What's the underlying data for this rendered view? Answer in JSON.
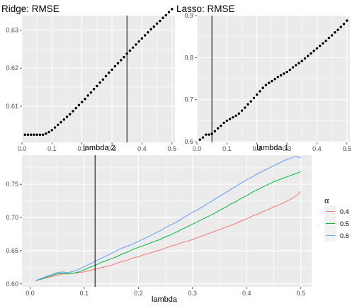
{
  "colors": {
    "panel_bg": "#ebebeb",
    "grid_major": "#ffffff",
    "point": "#000000",
    "vline": "#000000",
    "alpha_0_4": "#f8766d",
    "alpha_0_5": "#00ba38",
    "alpha_0_6": "#619cff"
  },
  "chart_data": [
    {
      "type": "scatter",
      "title": "Ridge: RMSE",
      "xlabel": "lambda 2",
      "ylabel": "",
      "xlim": [
        0.0,
        0.51
      ],
      "ylim": [
        0.6005,
        0.6338
      ],
      "xticks": [
        0.0,
        0.1,
        0.2,
        0.3,
        0.4,
        0.5
      ],
      "xtick_labels": [
        "0.0",
        "0.1",
        "0.2",
        "0.3",
        "0.4",
        "0.5"
      ],
      "yticks": [
        0.61,
        0.62,
        0.63
      ],
      "ytick_labels": [
        "0.61",
        "0.62",
        "0.63"
      ],
      "vline": 0.35,
      "grid": true,
      "x": [
        0.01,
        0.02,
        0.03,
        0.04,
        0.05,
        0.06,
        0.07,
        0.08,
        0.09,
        0.1,
        0.11,
        0.12,
        0.13,
        0.14,
        0.15,
        0.16,
        0.17,
        0.18,
        0.19,
        0.2,
        0.21,
        0.22,
        0.23,
        0.24,
        0.25,
        0.26,
        0.27,
        0.28,
        0.29,
        0.3,
        0.31,
        0.32,
        0.33,
        0.34,
        0.35,
        0.36,
        0.37,
        0.38,
        0.39,
        0.4,
        0.41,
        0.42,
        0.43,
        0.44,
        0.45,
        0.46,
        0.47,
        0.48,
        0.49,
        0.5
      ],
      "y": [
        0.6025,
        0.6025,
        0.6025,
        0.6025,
        0.6025,
        0.6025,
        0.6025,
        0.6028,
        0.6032,
        0.6037,
        0.6044,
        0.6051,
        0.6058,
        0.6065,
        0.6072,
        0.6079,
        0.6087,
        0.6095,
        0.6103,
        0.6111,
        0.6119,
        0.6128,
        0.6136,
        0.6145,
        0.6153,
        0.6162,
        0.617,
        0.6179,
        0.6188,
        0.6196,
        0.6205,
        0.6213,
        0.6221,
        0.6229,
        0.6238,
        0.6246,
        0.6254,
        0.6262,
        0.627,
        0.6278,
        0.6286,
        0.6294,
        0.6302,
        0.6309,
        0.6317,
        0.6324,
        0.6332,
        0.6339,
        0.6347,
        0.6355
      ]
    },
    {
      "type": "scatter",
      "title": "Lasso: RMSE",
      "xlabel": "lambda 1",
      "ylabel": "",
      "xlim": [
        0.0,
        0.51
      ],
      "ylim": [
        0.5985,
        0.9
      ],
      "xticks": [
        0.0,
        0.1,
        0.2,
        0.3,
        0.4,
        0.5
      ],
      "xtick_labels": [
        "0.0",
        "0.1",
        "0.2",
        "0.3",
        "0.4",
        "0.5"
      ],
      "yticks": [
        0.6,
        0.7,
        0.8,
        0.9
      ],
      "ytick_labels": [
        "0.6",
        "0.7",
        "0.8",
        "0.9"
      ],
      "vline": 0.05,
      "grid": true,
      "x": [
        0.01,
        0.02,
        0.03,
        0.04,
        0.05,
        0.06,
        0.07,
        0.08,
        0.09,
        0.1,
        0.11,
        0.12,
        0.13,
        0.14,
        0.15,
        0.16,
        0.17,
        0.18,
        0.19,
        0.2,
        0.21,
        0.22,
        0.23,
        0.24,
        0.25,
        0.26,
        0.27,
        0.28,
        0.29,
        0.3,
        0.31,
        0.32,
        0.33,
        0.34,
        0.35,
        0.36,
        0.37,
        0.38,
        0.39,
        0.4,
        0.41,
        0.42,
        0.43,
        0.44,
        0.45,
        0.46,
        0.47,
        0.48,
        0.49,
        0.5
      ],
      "y": [
        0.605,
        0.61,
        0.617,
        0.617,
        0.619,
        0.625,
        0.632,
        0.638,
        0.645,
        0.65,
        0.654,
        0.658,
        0.662,
        0.667,
        0.674,
        0.681,
        0.689,
        0.696,
        0.704,
        0.712,
        0.72,
        0.728,
        0.735,
        0.74,
        0.744,
        0.749,
        0.754,
        0.758,
        0.762,
        0.766,
        0.771,
        0.777,
        0.782,
        0.787,
        0.792,
        0.798,
        0.804,
        0.81,
        0.816,
        0.822,
        0.828,
        0.834,
        0.84,
        0.847,
        0.853,
        0.86,
        0.866,
        0.873,
        0.88,
        0.888
      ]
    },
    {
      "type": "line",
      "title": "",
      "xlabel": "lambda",
      "ylabel": "",
      "xlim": [
        -0.015,
        0.52
      ],
      "ylim": [
        0.5955,
        0.794
      ],
      "xticks": [
        0.0,
        0.1,
        0.2,
        0.3,
        0.4,
        0.5
      ],
      "xtick_labels": [
        "0.0",
        "0.1",
        "0.2",
        "0.3",
        "0.4",
        "0.5"
      ],
      "yticks": [
        0.6,
        0.65,
        0.7,
        0.75
      ],
      "ytick_labels": [
        "0.60",
        "0.65",
        "0.70",
        "0.75"
      ],
      "vline": 0.12,
      "grid": true,
      "legend_title": "α",
      "legend_position": "right",
      "x": [
        0.01,
        0.02,
        0.03,
        0.04,
        0.05,
        0.06,
        0.07,
        0.08,
        0.09,
        0.1,
        0.11,
        0.12,
        0.13,
        0.14,
        0.15,
        0.16,
        0.17,
        0.18,
        0.19,
        0.2,
        0.21,
        0.22,
        0.23,
        0.24,
        0.25,
        0.26,
        0.27,
        0.28,
        0.29,
        0.3,
        0.31,
        0.32,
        0.33,
        0.34,
        0.35,
        0.36,
        0.37,
        0.38,
        0.39,
        0.4,
        0.41,
        0.42,
        0.43,
        0.44,
        0.45,
        0.46,
        0.47,
        0.48,
        0.49,
        0.5
      ],
      "series": [
        {
          "name": "0.4",
          "color": "#f8766d",
          "values": [
            0.605,
            0.607,
            0.609,
            0.611,
            0.613,
            0.615,
            0.615,
            0.616,
            0.617,
            0.618,
            0.62,
            0.622,
            0.624,
            0.626,
            0.628,
            0.631,
            0.634,
            0.636,
            0.639,
            0.641,
            0.644,
            0.646,
            0.649,
            0.651,
            0.654,
            0.657,
            0.659,
            0.662,
            0.664,
            0.667,
            0.67,
            0.673,
            0.676,
            0.679,
            0.682,
            0.685,
            0.688,
            0.691,
            0.695,
            0.698,
            0.702,
            0.705,
            0.709,
            0.712,
            0.716,
            0.719,
            0.723,
            0.727,
            0.732,
            0.739
          ]
        },
        {
          "name": "0.5",
          "color": "#00ba38",
          "values": [
            0.605,
            0.607,
            0.61,
            0.613,
            0.615,
            0.616,
            0.615,
            0.616,
            0.618,
            0.621,
            0.625,
            0.628,
            0.632,
            0.635,
            0.638,
            0.641,
            0.645,
            0.648,
            0.652,
            0.655,
            0.658,
            0.661,
            0.664,
            0.667,
            0.671,
            0.674,
            0.678,
            0.682,
            0.686,
            0.69,
            0.694,
            0.698,
            0.702,
            0.706,
            0.711,
            0.715,
            0.72,
            0.724,
            0.729,
            0.733,
            0.738,
            0.742,
            0.746,
            0.75,
            0.754,
            0.757,
            0.76,
            0.763,
            0.766,
            0.769
          ]
        },
        {
          "name": "0.6",
          "color": "#619cff",
          "values": [
            0.605,
            0.608,
            0.611,
            0.614,
            0.617,
            0.618,
            0.617,
            0.619,
            0.622,
            0.626,
            0.63,
            0.634,
            0.638,
            0.642,
            0.646,
            0.65,
            0.654,
            0.657,
            0.66,
            0.664,
            0.668,
            0.672,
            0.676,
            0.68,
            0.685,
            0.689,
            0.693,
            0.698,
            0.703,
            0.708,
            0.712,
            0.717,
            0.722,
            0.727,
            0.732,
            0.737,
            0.742,
            0.747,
            0.752,
            0.757,
            0.761,
            0.766,
            0.77,
            0.774,
            0.778,
            0.782,
            0.786,
            0.789,
            0.792,
            0.79
          ]
        }
      ]
    }
  ]
}
